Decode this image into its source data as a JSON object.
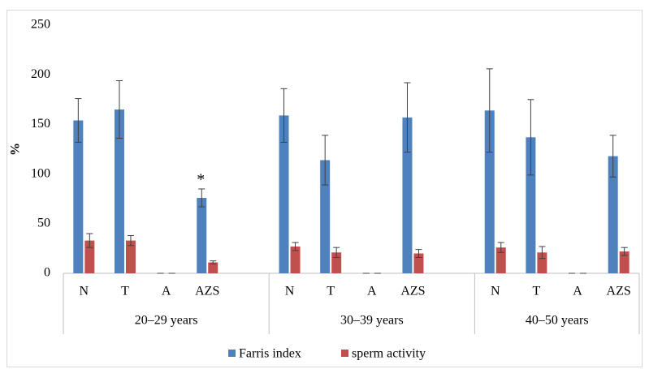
{
  "chart_data": {
    "type": "bar",
    "y_label": "%",
    "groups": [
      "20–29 years",
      "30–39 years",
      "40–50 years"
    ],
    "categories": [
      [
        "N",
        "T",
        "A",
        "AZS",
        null
      ],
      [
        "N",
        "T",
        "A",
        "AZS",
        null
      ],
      [
        "N",
        "T",
        "A",
        "AZS"
      ]
    ],
    "series": [
      {
        "name": "Farris index",
        "color": "#4f81bd",
        "values": [
          [
            154,
            165,
            0,
            76,
            null
          ],
          [
            159,
            114,
            0,
            157,
            null
          ],
          [
            164,
            137,
            0,
            118
          ]
        ],
        "errors": [
          [
            22,
            29,
            0,
            9,
            null
          ],
          [
            27,
            25,
            0,
            35,
            null
          ],
          [
            42,
            38,
            0,
            21
          ]
        ]
      },
      {
        "name": "sperm activity",
        "color": "#c0504d",
        "values": [
          [
            33,
            33,
            0,
            11,
            null
          ],
          [
            27,
            21,
            0,
            20,
            null
          ],
          [
            26,
            21,
            0,
            22
          ]
        ],
        "errors": [
          [
            7,
            5,
            0,
            1.5,
            null
          ],
          [
            4,
            5,
            0,
            4,
            null
          ],
          [
            5,
            6,
            0,
            4
          ]
        ]
      }
    ],
    "annotations": [
      {
        "text": "*",
        "group": "20–29 years",
        "category": "AZS"
      }
    ],
    "ylim": [
      0,
      250
    ],
    "yticks": [
      0,
      50,
      100,
      150,
      200,
      250
    ],
    "grid": false,
    "legend": "bottom"
  }
}
